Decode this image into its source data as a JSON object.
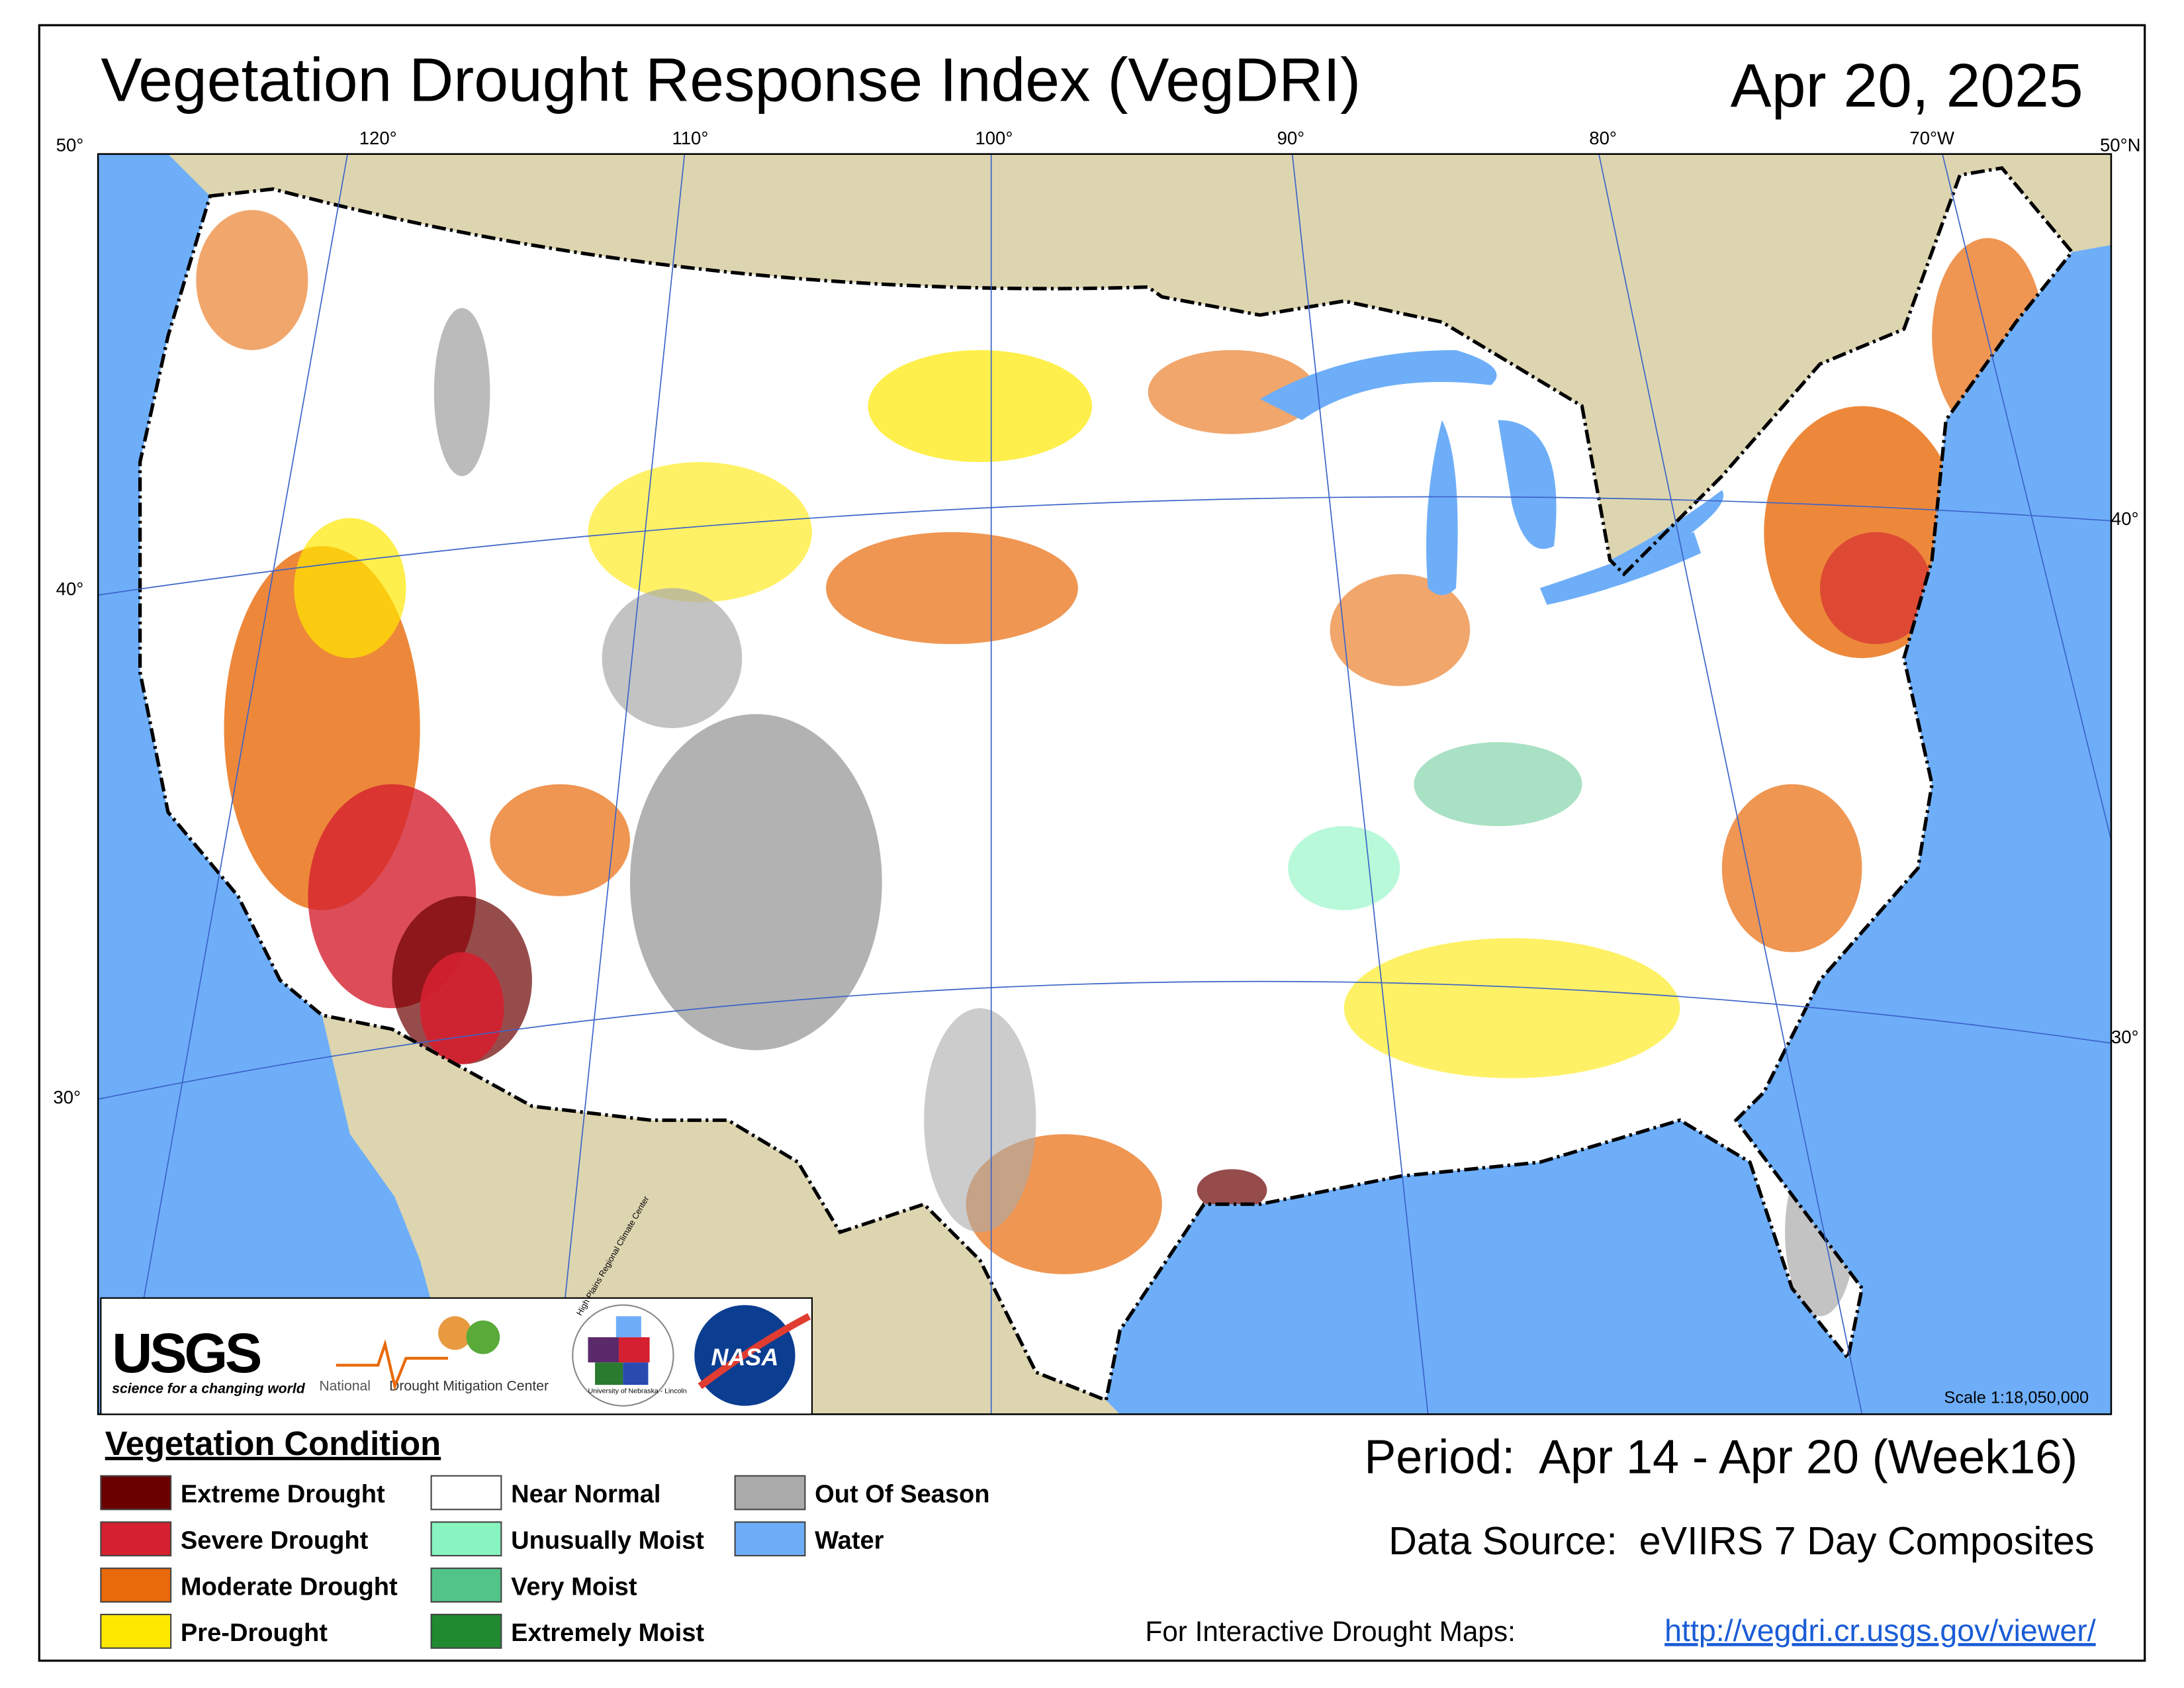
{
  "header": {
    "title": "Vegetation Drought Response Index (VegDRI)",
    "date": "Apr 20, 2025"
  },
  "map": {
    "graticule_labels": [
      "50°",
      "120°",
      "110°",
      "100°",
      "90°",
      "80°",
      "70°W",
      "50°N",
      "40°",
      "30°",
      "40°",
      "30°"
    ],
    "scale": "Scale 1:18,050,000"
  },
  "logos": {
    "usgs": "USGS",
    "usgs_tagline": "science for a changing world",
    "ndmc_prefix": "National",
    "ndmc": "Drought Mitigation Center",
    "hprcc": "High Plains Regional Climate Center",
    "unl": "University of Nebraska - Lincoln",
    "nasa": "NASA"
  },
  "legend": {
    "title": "Vegetation Condition",
    "items": [
      {
        "label": "Extreme Drought",
        "color": "#6b0000"
      },
      {
        "label": "Severe Drought",
        "color": "#d42030"
      },
      {
        "label": "Moderate Drought",
        "color": "#e86a0a"
      },
      {
        "label": "Pre-Drought",
        "color": "#ffe800"
      },
      {
        "label": "Near Normal",
        "color": "#ffffff"
      },
      {
        "label": "Unusually Moist",
        "color": "#88f5c0"
      },
      {
        "label": "Very Moist",
        "color": "#52c488"
      },
      {
        "label": "Extremely Moist",
        "color": "#1f8a30"
      },
      {
        "label": "Out Of Season",
        "color": "#aaaaaa"
      },
      {
        "label": "Water",
        "color": "#6eaef8"
      }
    ]
  },
  "footer": {
    "period": "Period:  Apr 14 - Apr 20 (Week16)",
    "source": "Data Source:  eVIIRS 7 Day Composites",
    "interactive": "For Interactive Drought Maps:",
    "url": "http://vegdri.cr.usgs.gov/viewer/"
  }
}
